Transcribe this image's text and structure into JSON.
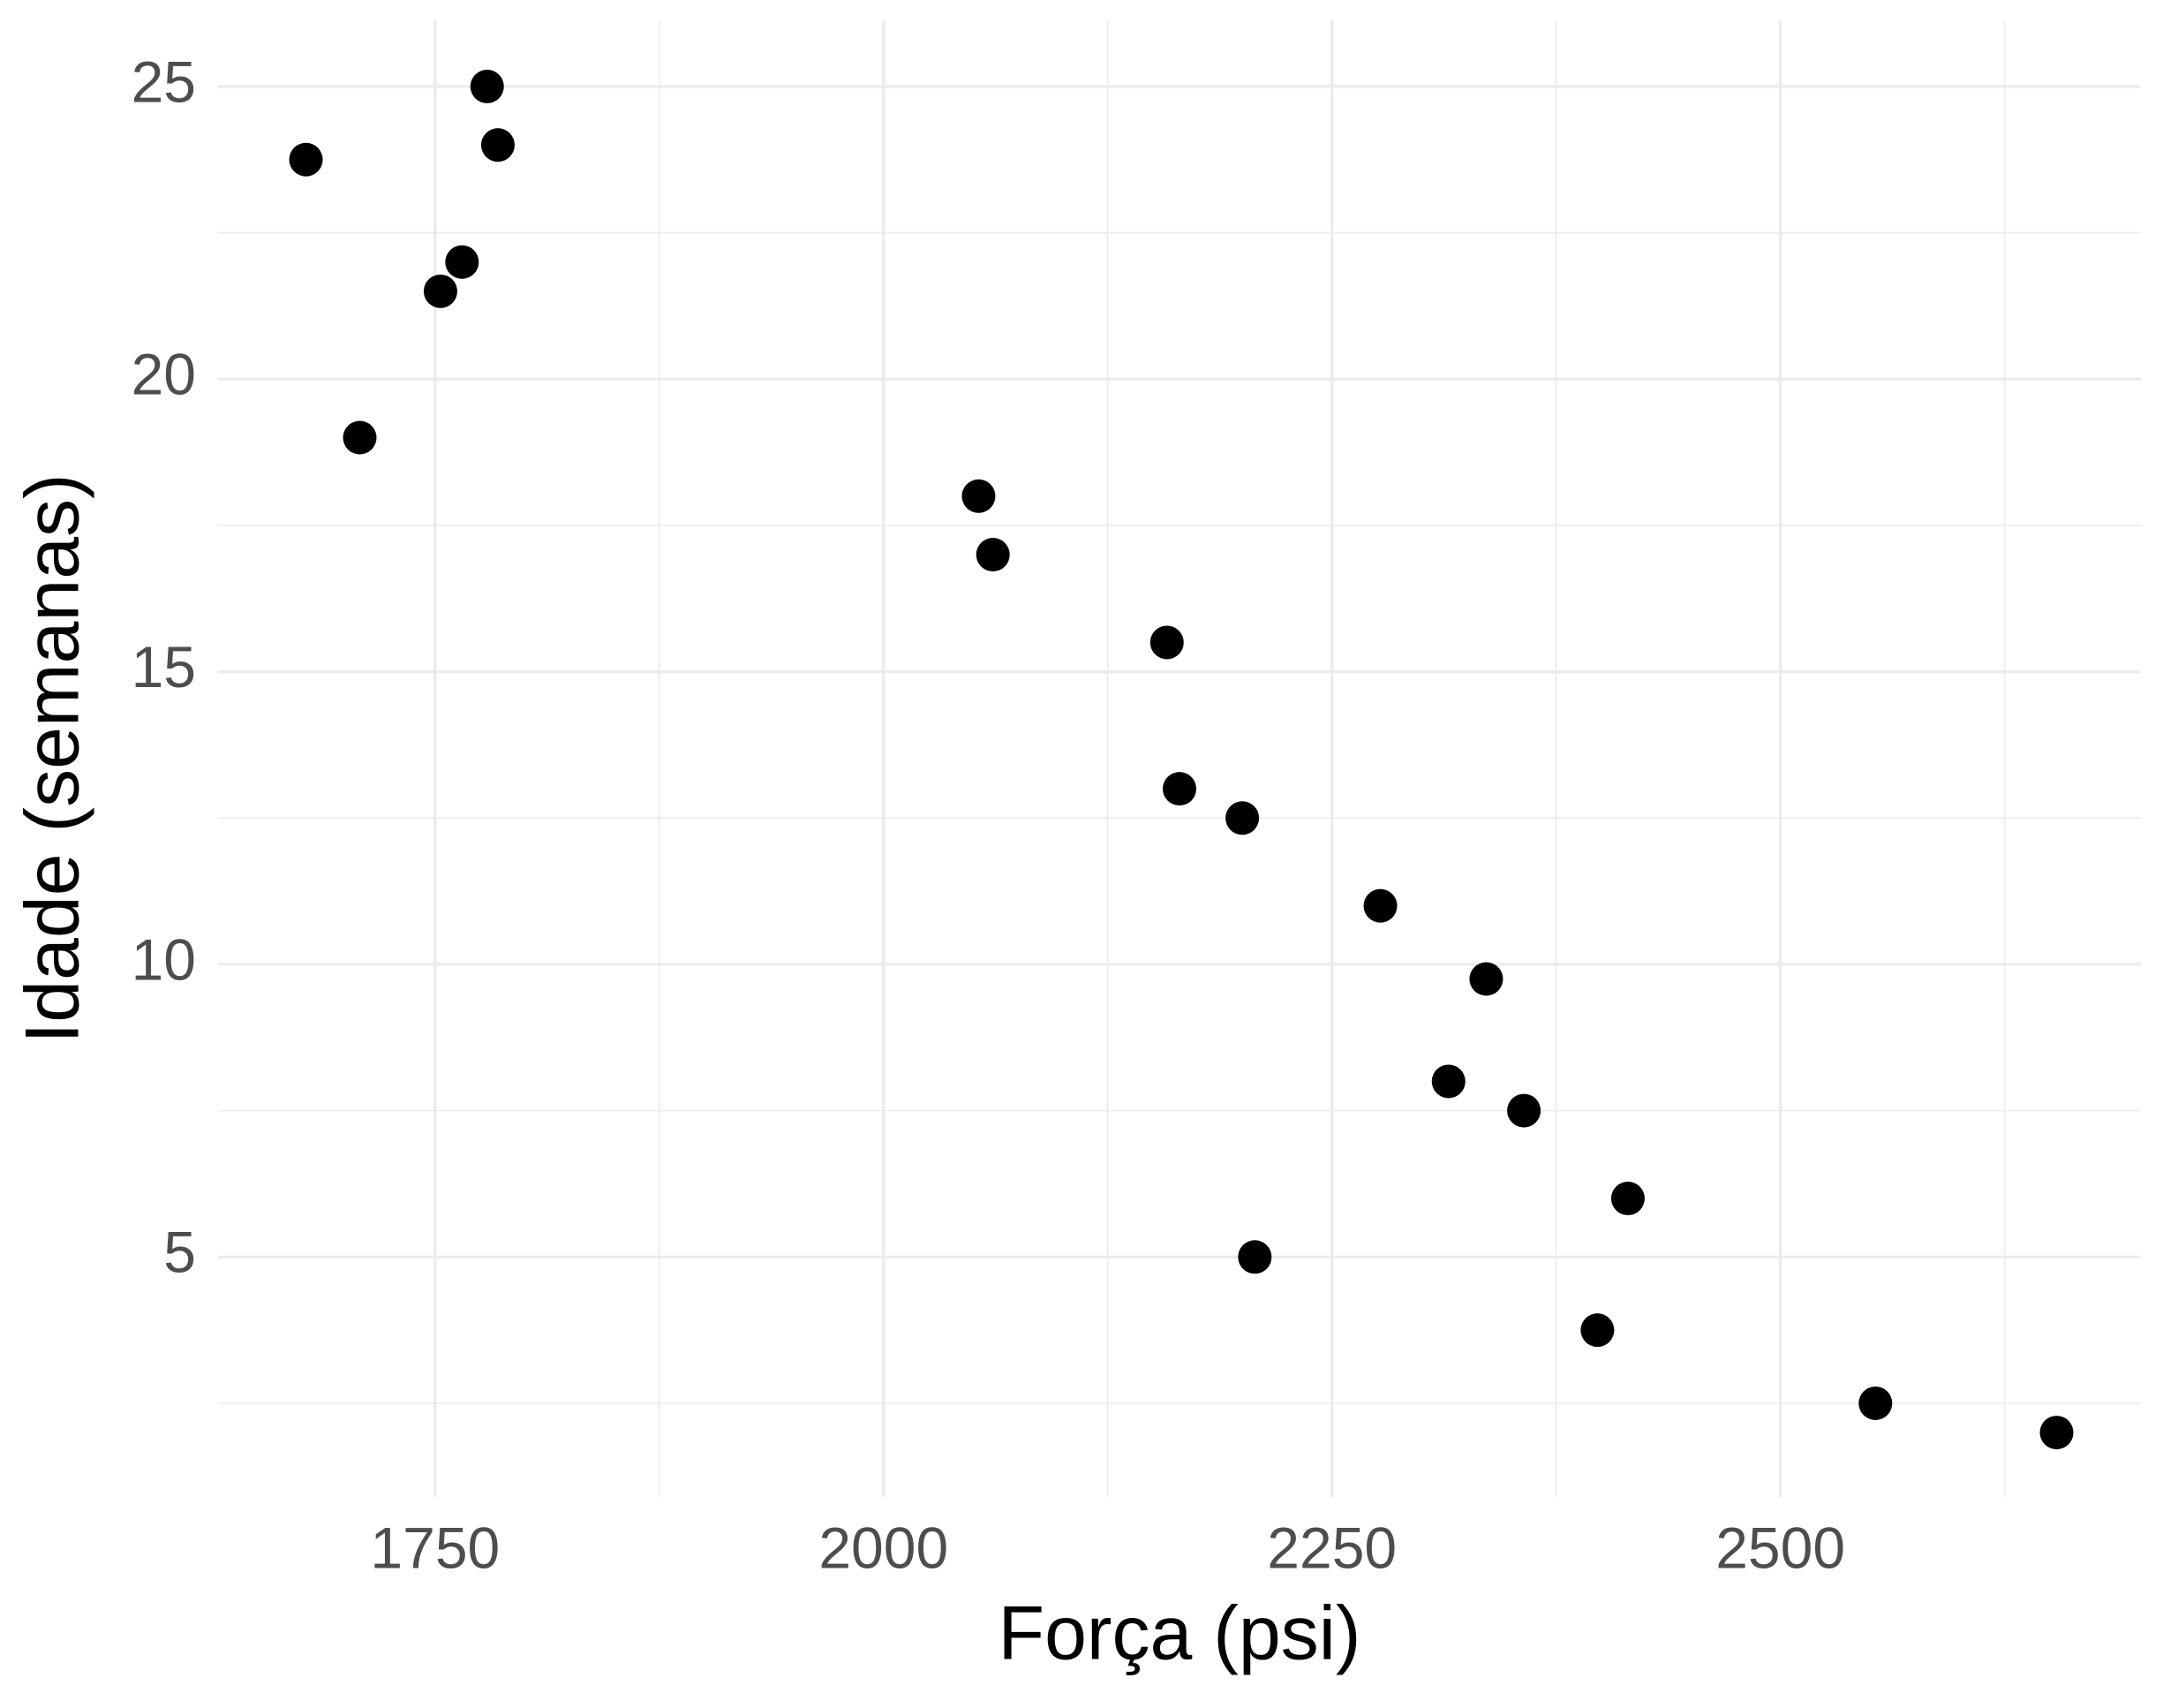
{
  "chart_data": {
    "type": "scatter",
    "x_label": "Força (psi)",
    "y_label": "Idade (semanas)",
    "series": [
      {
        "color": "#000000",
        "x": [
          1678,
          1708,
          1753,
          1765,
          1779,
          1785,
          2053,
          2061,
          2158,
          2165,
          2200,
          2207,
          2277,
          2315,
          2336,
          2357,
          2398,
          2415,
          2553,
          2654
        ],
        "values": [
          23.75,
          19,
          21.5,
          22,
          25,
          24,
          18,
          17,
          15.5,
          13,
          12.5,
          5,
          11,
          8,
          9.75,
          7.5,
          3.75,
          6,
          2.5,
          2
        ]
      }
    ],
    "xlim": [
      1629,
      2701
    ],
    "ylim": [
      0.9,
      26.13
    ],
    "xticks": [
      1750,
      2000,
      2250,
      2500
    ],
    "yticks": [
      5,
      10,
      15,
      20,
      25
    ],
    "grid": true
  }
}
